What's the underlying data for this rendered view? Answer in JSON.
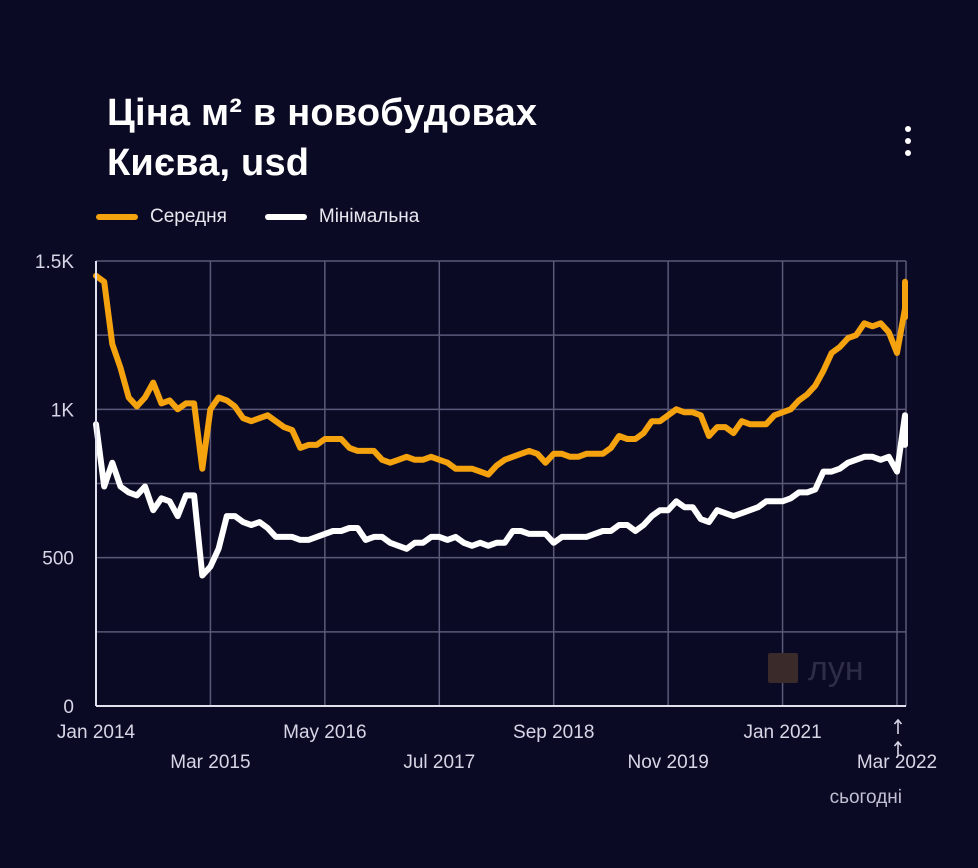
{
  "header": {
    "title_line1": "Ціна м² в новобудовах",
    "title_line2": "Києва, usd"
  },
  "menu": {
    "icon": "more-vertical-icon"
  },
  "watermark": {
    "text": "лун"
  },
  "today_label": "сьогодні",
  "colors": {
    "background": "#0b0a24",
    "average": "#f5a20f",
    "minimum": "#ffffff",
    "grid": "#5a5a78"
  },
  "chart_data": {
    "type": "line",
    "title": "Ціна м² в новобудовах Києва, usd",
    "xlabel": "",
    "ylabel": "",
    "ylim": [
      0,
      1500
    ],
    "y_ticks": [
      {
        "value": 0,
        "label": "0"
      },
      {
        "value": 500,
        "label": "500"
      },
      {
        "value": 1000,
        "label": "1K"
      },
      {
        "value": 1500,
        "label": "1.5K"
      }
    ],
    "x_range": [
      "2014-01",
      "2022-04"
    ],
    "x_ticks": [
      {
        "date": "2014-01",
        "label": "Jan 2014",
        "row": 1
      },
      {
        "date": "2015-03",
        "label": "Mar 2015",
        "row": 2
      },
      {
        "date": "2016-05",
        "label": "May 2016",
        "row": 1
      },
      {
        "date": "2017-07",
        "label": "Jul 2017",
        "row": 2
      },
      {
        "date": "2018-09",
        "label": "Sep 2018",
        "row": 1
      },
      {
        "date": "2019-11",
        "label": "Nov 2019",
        "row": 2
      },
      {
        "date": "2021-01",
        "label": "Jan 2021",
        "row": 1
      },
      {
        "date": "2022-03",
        "label": "Mar 2022",
        "row": 2
      }
    ],
    "today_marker": "2022-04",
    "grid": true,
    "legend_position": "top-left",
    "series": [
      {
        "name": "Середня",
        "color": "#f5a20f",
        "points": [
          [
            "2014-01",
            1450
          ],
          [
            "2014-02",
            1430
          ],
          [
            "2014-03",
            1220
          ],
          [
            "2014-04",
            1140
          ],
          [
            "2014-05",
            1040
          ],
          [
            "2014-06",
            1010
          ],
          [
            "2014-07",
            1040
          ],
          [
            "2014-08",
            1090
          ],
          [
            "2014-09",
            1020
          ],
          [
            "2014-10",
            1030
          ],
          [
            "2014-11",
            1000
          ],
          [
            "2014-12",
            1020
          ],
          [
            "2015-01",
            1020
          ],
          [
            "2015-02",
            800
          ],
          [
            "2015-03",
            1000
          ],
          [
            "2015-04",
            1040
          ],
          [
            "2015-05",
            1030
          ],
          [
            "2015-06",
            1010
          ],
          [
            "2015-07",
            970
          ],
          [
            "2015-08",
            960
          ],
          [
            "2015-09",
            970
          ],
          [
            "2015-10",
            980
          ],
          [
            "2015-11",
            960
          ],
          [
            "2015-12",
            940
          ],
          [
            "2016-01",
            930
          ],
          [
            "2016-02",
            870
          ],
          [
            "2016-03",
            880
          ],
          [
            "2016-04",
            880
          ],
          [
            "2016-05",
            900
          ],
          [
            "2016-06",
            900
          ],
          [
            "2016-07",
            900
          ],
          [
            "2016-08",
            870
          ],
          [
            "2016-09",
            860
          ],
          [
            "2016-10",
            860
          ],
          [
            "2016-11",
            860
          ],
          [
            "2016-12",
            830
          ],
          [
            "2017-01",
            820
          ],
          [
            "2017-02",
            830
          ],
          [
            "2017-03",
            840
          ],
          [
            "2017-04",
            830
          ],
          [
            "2017-05",
            830
          ],
          [
            "2017-06",
            840
          ],
          [
            "2017-07",
            830
          ],
          [
            "2017-08",
            820
          ],
          [
            "2017-09",
            800
          ],
          [
            "2017-10",
            800
          ],
          [
            "2017-11",
            800
          ],
          [
            "2017-12",
            790
          ],
          [
            "2018-01",
            780
          ],
          [
            "2018-02",
            810
          ],
          [
            "2018-03",
            830
          ],
          [
            "2018-04",
            840
          ],
          [
            "2018-05",
            850
          ],
          [
            "2018-06",
            860
          ],
          [
            "2018-07",
            850
          ],
          [
            "2018-08",
            820
          ],
          [
            "2018-09",
            850
          ],
          [
            "2018-10",
            850
          ],
          [
            "2018-11",
            840
          ],
          [
            "2018-12",
            840
          ],
          [
            "2019-01",
            850
          ],
          [
            "2019-02",
            850
          ],
          [
            "2019-03",
            850
          ],
          [
            "2019-04",
            870
          ],
          [
            "2019-05",
            910
          ],
          [
            "2019-06",
            900
          ],
          [
            "2019-07",
            900
          ],
          [
            "2019-08",
            920
          ],
          [
            "2019-09",
            960
          ],
          [
            "2019-10",
            960
          ],
          [
            "2019-11",
            980
          ],
          [
            "2019-12",
            1000
          ],
          [
            "2020-01",
            990
          ],
          [
            "2020-02",
            990
          ],
          [
            "2020-03",
            980
          ],
          [
            "2020-04",
            910
          ],
          [
            "2020-05",
            940
          ],
          [
            "2020-06",
            940
          ],
          [
            "2020-07",
            920
          ],
          [
            "2020-08",
            960
          ],
          [
            "2020-09",
            950
          ],
          [
            "2020-10",
            950
          ],
          [
            "2020-11",
            950
          ],
          [
            "2020-12",
            980
          ],
          [
            "2021-01",
            990
          ],
          [
            "2021-02",
            1000
          ],
          [
            "2021-03",
            1030
          ],
          [
            "2021-04",
            1050
          ],
          [
            "2021-05",
            1080
          ],
          [
            "2021-06",
            1130
          ],
          [
            "2021-07",
            1190
          ],
          [
            "2021-08",
            1210
          ],
          [
            "2021-09",
            1240
          ],
          [
            "2021-10",
            1250
          ],
          [
            "2021-11",
            1290
          ],
          [
            "2021-12",
            1280
          ],
          [
            "2022-01",
            1290
          ],
          [
            "2022-02",
            1260
          ],
          [
            "2022-03",
            1190
          ],
          [
            "2022-04",
            1340
          ],
          [
            "2022-05",
            1430
          ],
          [
            "2022-06",
            1310
          ]
        ]
      },
      {
        "name": "Мінімальна",
        "color": "#ffffff",
        "points": [
          [
            "2014-01",
            950
          ],
          [
            "2014-02",
            740
          ],
          [
            "2014-03",
            820
          ],
          [
            "2014-04",
            740
          ],
          [
            "2014-05",
            720
          ],
          [
            "2014-06",
            710
          ],
          [
            "2014-07",
            740
          ],
          [
            "2014-08",
            660
          ],
          [
            "2014-09",
            700
          ],
          [
            "2014-10",
            690
          ],
          [
            "2014-11",
            640
          ],
          [
            "2014-12",
            710
          ],
          [
            "2015-01",
            710
          ],
          [
            "2015-02",
            440
          ],
          [
            "2015-03",
            470
          ],
          [
            "2015-04",
            530
          ],
          [
            "2015-05",
            640
          ],
          [
            "2015-06",
            640
          ],
          [
            "2015-07",
            620
          ],
          [
            "2015-08",
            610
          ],
          [
            "2015-09",
            620
          ],
          [
            "2015-10",
            600
          ],
          [
            "2015-11",
            570
          ],
          [
            "2015-12",
            570
          ],
          [
            "2016-01",
            570
          ],
          [
            "2016-02",
            560
          ],
          [
            "2016-03",
            560
          ],
          [
            "2016-04",
            570
          ],
          [
            "2016-05",
            580
          ],
          [
            "2016-06",
            590
          ],
          [
            "2016-07",
            590
          ],
          [
            "2016-08",
            600
          ],
          [
            "2016-09",
            600
          ],
          [
            "2016-10",
            560
          ],
          [
            "2016-11",
            570
          ],
          [
            "2016-12",
            570
          ],
          [
            "2017-01",
            550
          ],
          [
            "2017-02",
            540
          ],
          [
            "2017-03",
            530
          ],
          [
            "2017-04",
            550
          ],
          [
            "2017-05",
            550
          ],
          [
            "2017-06",
            570
          ],
          [
            "2017-07",
            570
          ],
          [
            "2017-08",
            560
          ],
          [
            "2017-09",
            570
          ],
          [
            "2017-10",
            550
          ],
          [
            "2017-11",
            540
          ],
          [
            "2017-12",
            550
          ],
          [
            "2018-01",
            540
          ],
          [
            "2018-02",
            550
          ],
          [
            "2018-03",
            550
          ],
          [
            "2018-04",
            590
          ],
          [
            "2018-05",
            590
          ],
          [
            "2018-06",
            580
          ],
          [
            "2018-07",
            580
          ],
          [
            "2018-08",
            580
          ],
          [
            "2018-09",
            550
          ],
          [
            "2018-10",
            570
          ],
          [
            "2018-11",
            570
          ],
          [
            "2018-12",
            570
          ],
          [
            "2019-01",
            570
          ],
          [
            "2019-02",
            580
          ],
          [
            "2019-03",
            590
          ],
          [
            "2019-04",
            590
          ],
          [
            "2019-05",
            610
          ],
          [
            "2019-06",
            610
          ],
          [
            "2019-07",
            590
          ],
          [
            "2019-08",
            610
          ],
          [
            "2019-09",
            640
          ],
          [
            "2019-10",
            660
          ],
          [
            "2019-11",
            660
          ],
          [
            "2019-12",
            690
          ],
          [
            "2020-01",
            670
          ],
          [
            "2020-02",
            670
          ],
          [
            "2020-03",
            630
          ],
          [
            "2020-04",
            620
          ],
          [
            "2020-05",
            660
          ],
          [
            "2020-06",
            650
          ],
          [
            "2020-07",
            640
          ],
          [
            "2020-08",
            650
          ],
          [
            "2020-09",
            660
          ],
          [
            "2020-10",
            670
          ],
          [
            "2020-11",
            690
          ],
          [
            "2020-12",
            690
          ],
          [
            "2021-01",
            690
          ],
          [
            "2021-02",
            700
          ],
          [
            "2021-03",
            720
          ],
          [
            "2021-04",
            720
          ],
          [
            "2021-05",
            730
          ],
          [
            "2021-06",
            790
          ],
          [
            "2021-07",
            790
          ],
          [
            "2021-08",
            800
          ],
          [
            "2021-09",
            820
          ],
          [
            "2021-10",
            830
          ],
          [
            "2021-11",
            840
          ],
          [
            "2021-12",
            840
          ],
          [
            "2022-01",
            830
          ],
          [
            "2022-02",
            840
          ],
          [
            "2022-03",
            790
          ],
          [
            "2022-04",
            980
          ],
          [
            "2022-05",
            930
          ],
          [
            "2022-06",
            880
          ]
        ]
      }
    ]
  }
}
